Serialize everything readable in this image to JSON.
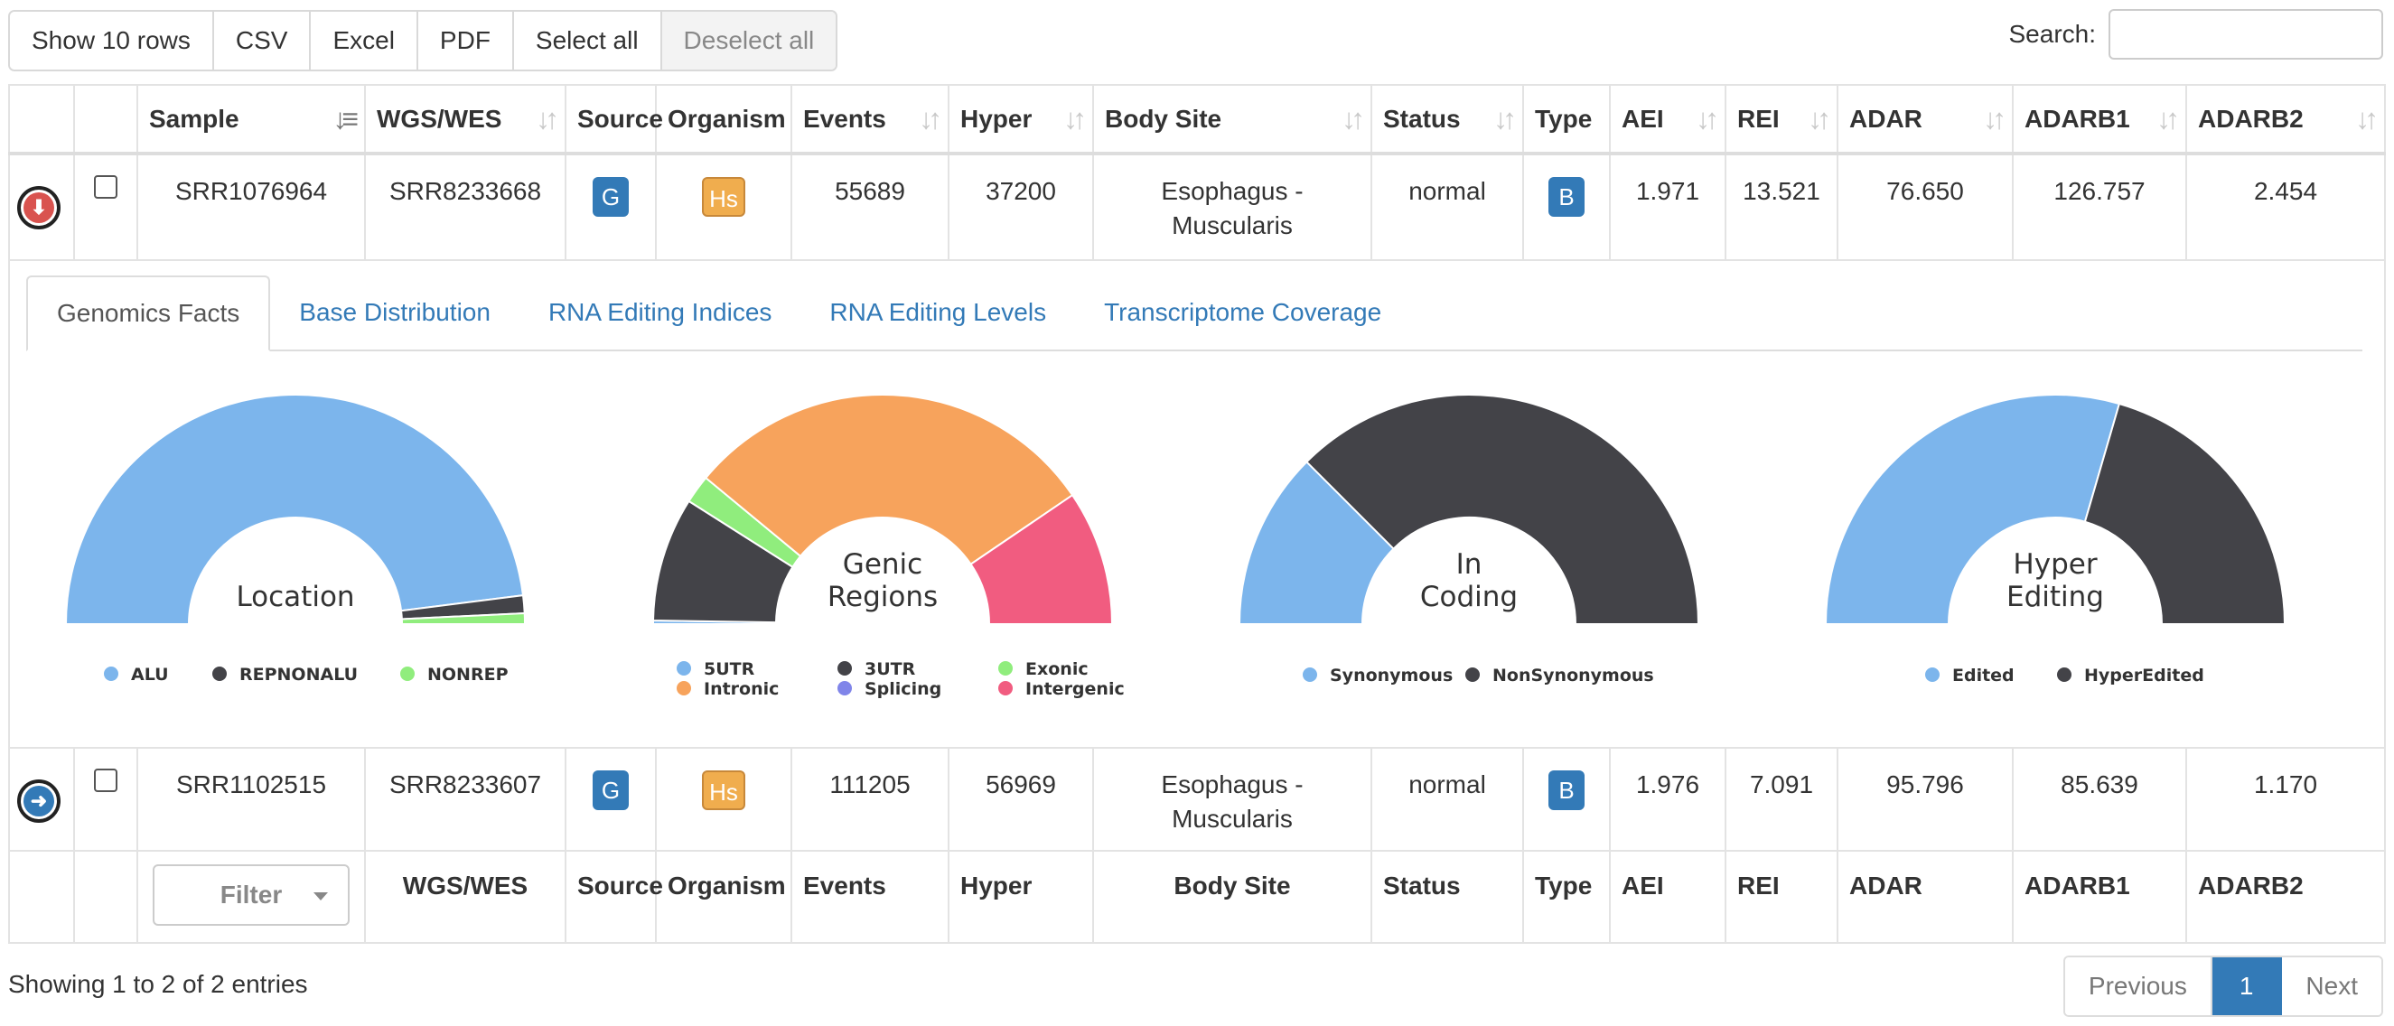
{
  "toolbar": {
    "show_rows": "Show 10 rows",
    "csv": "CSV",
    "excel": "Excel",
    "pdf": "PDF",
    "select_all": "Select all",
    "deselect_all": "Deselect all"
  },
  "search": {
    "label": "Search:",
    "value": "",
    "placeholder": ""
  },
  "columns": [
    "Sample",
    "WGS/WES",
    "Source",
    "Organism",
    "Events",
    "Hyper",
    "Body Site",
    "Status",
    "Type",
    "AEI",
    "REI",
    "ADAR",
    "ADARB1",
    "ADARB2"
  ],
  "footer_columns": [
    "WGS/WES",
    "Source",
    "Organism",
    "Events",
    "Hyper",
    "Body Site",
    "Status",
    "Type",
    "AEI",
    "REI",
    "ADAR",
    "ADARB1",
    "ADARB2"
  ],
  "rows": [
    {
      "sample": "SRR1076964",
      "wgs": "SRR8233668",
      "source": "G",
      "organism": "Hs",
      "events": "55689",
      "hyper": "37200",
      "body_site_1": "Esophagus -",
      "body_site_2": "Muscularis",
      "status": "normal",
      "type": "B",
      "aei": "1.971",
      "rei": "13.521",
      "adar": "76.650",
      "adarb1": "126.757",
      "adarb2": "2.454"
    },
    {
      "sample": "SRR1102515",
      "wgs": "SRR8233607",
      "source": "G",
      "organism": "Hs",
      "events": "111205",
      "hyper": "56969",
      "body_site_1": "Esophagus -",
      "body_site_2": "Muscularis",
      "status": "normal",
      "type": "B",
      "aei": "1.976",
      "rei": "7.091",
      "adar": "95.796",
      "adarb1": "85.639",
      "adarb2": "1.170"
    }
  ],
  "tabs": [
    "Genomics Facts",
    "Base Distribution",
    "RNA Editing Indices",
    "RNA Editing Levels",
    "Transcriptome Coverage"
  ],
  "chart_data": [
    {
      "type": "pie",
      "title": "Location",
      "categories": [
        "ALU",
        "REPNONALU",
        "NONREP"
      ],
      "values": [
        96,
        2.5,
        1.5
      ],
      "colors": [
        "#7cb5ec",
        "#434348",
        "#90ed7d"
      ],
      "legend": "bottom"
    },
    {
      "type": "pie",
      "title": "Genic Regions",
      "categories": [
        "5UTR",
        "3UTR",
        "Exonic",
        "Intronic",
        "Splicing",
        "Intergenic"
      ],
      "values": [
        0.5,
        17.5,
        4,
        59,
        0,
        19
      ],
      "colors": [
        "#7cb5ec",
        "#434348",
        "#90ed7d",
        "#f7a35c",
        "#8085e9",
        "#f15c80"
      ],
      "legend": "bottom"
    },
    {
      "type": "pie",
      "title": "In Coding",
      "categories": [
        "Synonymous",
        "NonSynonymous"
      ],
      "values": [
        25,
        75
      ],
      "colors": [
        "#7cb5ec",
        "#434348"
      ],
      "legend": "bottom"
    },
    {
      "type": "pie",
      "title": "Hyper Editing",
      "categories": [
        "Edited",
        "HyperEdited"
      ],
      "values": [
        59,
        41
      ],
      "colors": [
        "#7cb5ec",
        "#434348"
      ],
      "legend": "bottom"
    }
  ],
  "filter": {
    "label": "Filter"
  },
  "info": "Showing 1 to 2 of 2 entries",
  "pager": {
    "previous": "Previous",
    "current": "1",
    "next": "Next"
  }
}
